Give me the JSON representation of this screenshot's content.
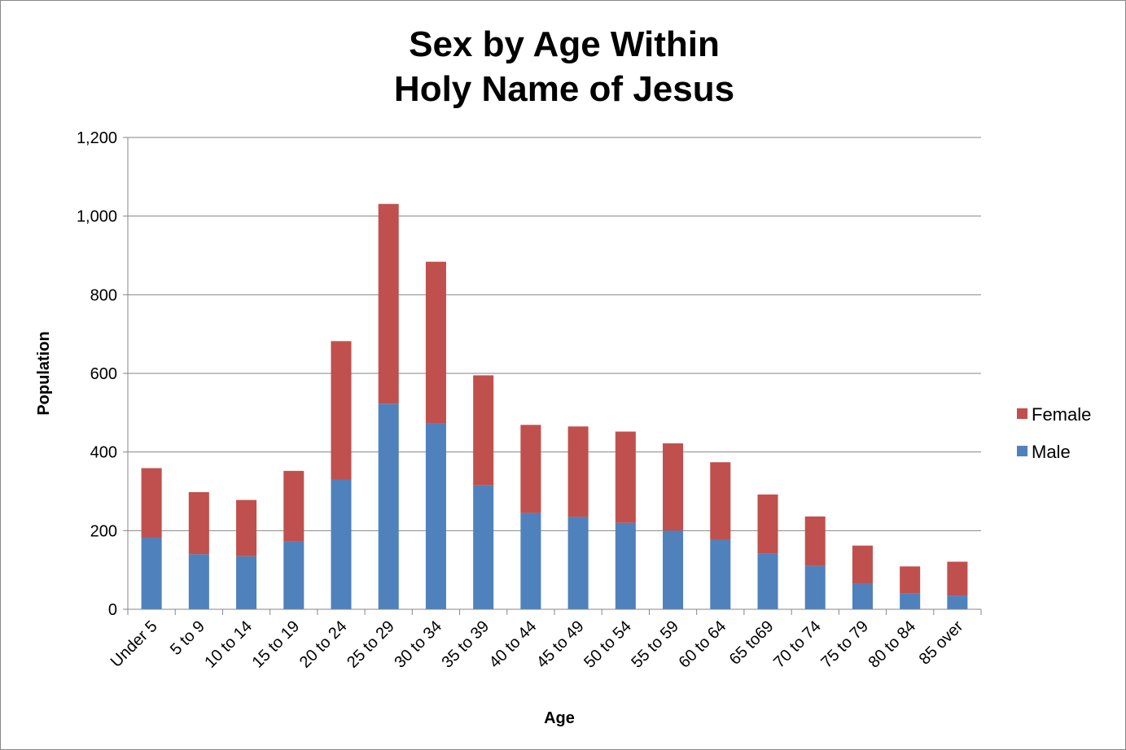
{
  "chart_data": {
    "type": "bar",
    "stacked": true,
    "title_lines": [
      "Sex by Age Within",
      "Holy Name of Jesus"
    ],
    "xlabel": "Age",
    "ylabel": "Population",
    "ylim": [
      0,
      1200
    ],
    "y_ticks": [
      0,
      200,
      400,
      600,
      800,
      1000,
      1200
    ],
    "y_tick_labels": [
      "0",
      "200",
      "400",
      "600",
      "800",
      "1,000",
      "1,200"
    ],
    "grid": true,
    "legend_position": "right",
    "categories": [
      "Under 5",
      "5 to 9",
      "10 to 14",
      "15 to 19",
      "20 to 24",
      "25 to 29",
      "30 to 34",
      "35 to 39",
      "40 to 44",
      "45 to 49",
      "50 to 54",
      "55 to 59",
      "60 to 64",
      "65 to69",
      "70 to 74",
      "75 to 79",
      "80 to 84",
      "85 over"
    ],
    "series": [
      {
        "name": "Male",
        "color": "#4f81bd",
        "values": [
          182,
          140,
          135,
          172,
          330,
          523,
          472,
          315,
          245,
          235,
          220,
          200,
          177,
          142,
          110,
          65,
          40,
          35
        ]
      },
      {
        "name": "Female",
        "color": "#c0504d",
        "values": [
          177,
          158,
          143,
          180,
          352,
          508,
          412,
          280,
          224,
          230,
          232,
          222,
          197,
          150,
          126,
          97,
          69,
          86
        ]
      }
    ],
    "legend_order": [
      "Female",
      "Male"
    ]
  }
}
